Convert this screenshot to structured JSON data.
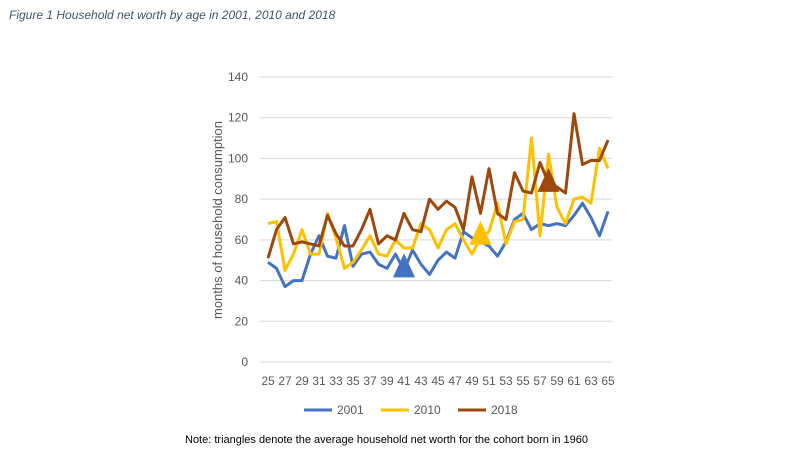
{
  "figure_title": "Figure 1 Household net worth by age in 2001, 2010 and 2018",
  "note": "Note: triangles denote the average household net worth for the cohort born in 1960",
  "chart_data": {
    "type": "line",
    "title": "",
    "xlabel": "",
    "ylabel": "months of household consumption",
    "ylim": [
      0,
      140
    ],
    "yticks": [
      0,
      20,
      40,
      60,
      80,
      100,
      120,
      140
    ],
    "grid": true,
    "legend": "bottom",
    "x": [
      25,
      26,
      27,
      28,
      29,
      30,
      31,
      32,
      33,
      34,
      35,
      36,
      37,
      38,
      39,
      40,
      41,
      42,
      43,
      44,
      45,
      46,
      47,
      48,
      49,
      50,
      51,
      52,
      53,
      54,
      55,
      56,
      57,
      58,
      59,
      60,
      61,
      62,
      63,
      64,
      65
    ],
    "xticks": [
      25,
      27,
      29,
      31,
      33,
      35,
      37,
      39,
      41,
      43,
      45,
      47,
      49,
      51,
      53,
      55,
      57,
      59,
      61,
      63,
      65
    ],
    "series": [
      {
        "name": "2001",
        "color": "#4472c4",
        "values": [
          49,
          46,
          37,
          40,
          40,
          53,
          62,
          52,
          51,
          67,
          47,
          53,
          54,
          48,
          46,
          53,
          45,
          55,
          48,
          43,
          50,
          54,
          51,
          64,
          61,
          59,
          57,
          52,
          59,
          70,
          73,
          65,
          68,
          67,
          68,
          67,
          72,
          78,
          71,
          62,
          74
        ],
        "marker": {
          "age": 41,
          "value": 47
        }
      },
      {
        "name": "2010",
        "color": "#ffc000",
        "values": [
          68,
          69,
          45,
          53,
          65,
          53,
          53,
          73,
          61,
          46,
          49,
          55,
          62,
          53,
          52,
          60,
          56,
          56,
          68,
          65,
          56,
          65,
          68,
          60,
          53,
          61,
          64,
          78,
          58,
          69,
          70,
          110,
          62,
          102,
          76,
          68,
          80,
          81,
          78,
          105,
          95
        ],
        "marker": {
          "age": 50,
          "value": 63
        }
      },
      {
        "name": "2018",
        "color": "#9e480e",
        "values": [
          51,
          65,
          71,
          58,
          59,
          58,
          57,
          72,
          63,
          57,
          57,
          65,
          75,
          58,
          62,
          60,
          73,
          65,
          64,
          80,
          75,
          79,
          76,
          65,
          91,
          73,
          95,
          73,
          70,
          93,
          84,
          83,
          98,
          88,
          86,
          83,
          122,
          97,
          99,
          99,
          109
        ],
        "marker": {
          "age": 58,
          "value": 89
        }
      }
    ]
  }
}
